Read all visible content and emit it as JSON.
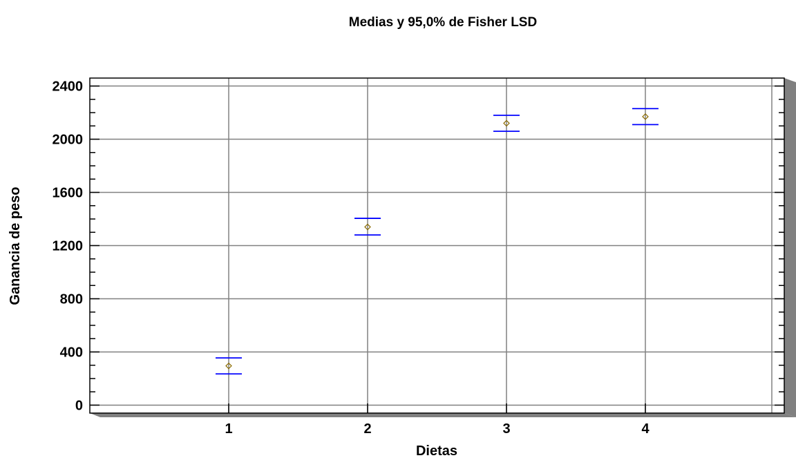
{
  "chart_data": {
    "type": "scatter",
    "title": "Medias y 95,0% de Fisher LSD",
    "xlabel": "Dietas",
    "ylabel": "Ganancia de peso",
    "categories": [
      "1",
      "2",
      "3",
      "4"
    ],
    "x_ticks": [
      "1",
      "2",
      "3",
      "4"
    ],
    "xlim": [
      0,
      5
    ],
    "ylim": [
      -60,
      2460
    ],
    "y_ticks": [
      0,
      400,
      800,
      1200,
      1600,
      2000,
      2400
    ],
    "y_minor_step": 100,
    "grid": true,
    "legend": "none",
    "series": [
      {
        "means": [
          295,
          1340,
          2120,
          2170
        ],
        "lower": [
          235,
          1280,
          2060,
          2110
        ],
        "upper": [
          355,
          1405,
          2180,
          2230
        ]
      }
    ],
    "colors": {
      "interval": "#0000ff",
      "marker": "#8b6b00",
      "grid": "#808080",
      "shadow": "#808080",
      "axis": "#000000"
    }
  }
}
